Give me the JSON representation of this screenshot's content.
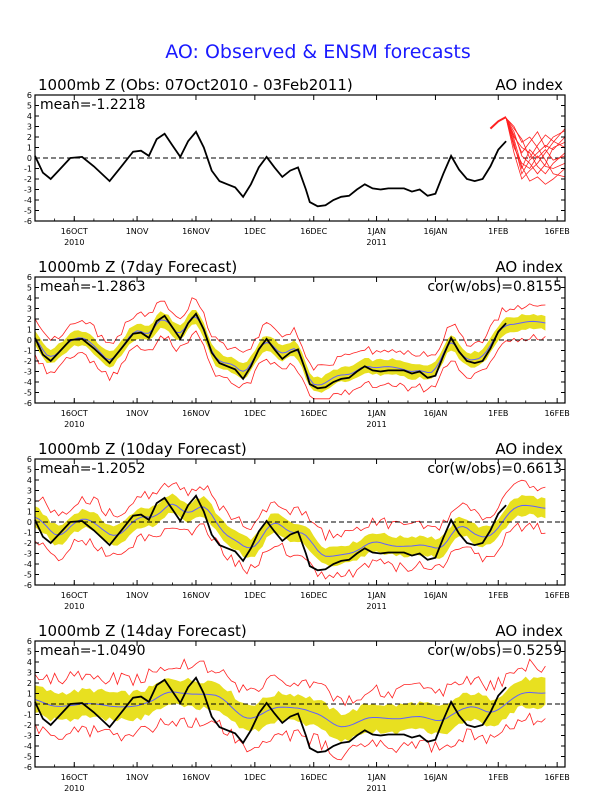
{
  "figure_title": "AO: Observed & ENSM forecasts",
  "colors": {
    "title": "#1a1aff",
    "observed": "#000000",
    "spread_fill": "#e8e020",
    "ensemble_mean": "#6060ff",
    "member": "#ff2020",
    "zero_line": "#000000"
  },
  "x_axis": {
    "tick_labels": [
      "16OCT",
      "1NOV",
      "16NOV",
      "1DEC",
      "16DEC",
      "1JAN",
      "16JAN",
      "1FEB",
      "16FEB"
    ],
    "tick_days": [
      10,
      26,
      41,
      56,
      71,
      87,
      102,
      118,
      133
    ],
    "year_labels": [
      {
        "text": "2010",
        "day": 10
      },
      {
        "text": "2011",
        "day": 87
      }
    ],
    "domain_days": [
      0,
      135
    ],
    "day_zero": "6 Oct 2010"
  },
  "y_axis": {
    "ylim": [
      -6,
      6
    ],
    "tick_labels": [
      "-6",
      "-5",
      "-4",
      "-3",
      "-2",
      "-1",
      "0",
      "1",
      "2",
      "3",
      "4",
      "5",
      "6"
    ]
  },
  "chart_data": [
    {
      "type": "line",
      "title": "1000mb Z (Obs: 07Oct2010 - 03Feb2011)",
      "index_label": "AO index",
      "mean_label": "mean=-1.2218",
      "cor_label": "",
      "lead_days": 0,
      "has_spread": false,
      "series": [
        {
          "name": "observed",
          "x": [
            0,
            2,
            4,
            6,
            9,
            12,
            15,
            19,
            22,
            25,
            27,
            29,
            31,
            33,
            35,
            37,
            39,
            41,
            43,
            45,
            47,
            49,
            51,
            53,
            55,
            57,
            59,
            61,
            63,
            65,
            67,
            69,
            70,
            72,
            74,
            76,
            78,
            80,
            82,
            84,
            86,
            88,
            90,
            92,
            94,
            96,
            98,
            100,
            102,
            104,
            106,
            108,
            110,
            112,
            114,
            116,
            118,
            120
          ],
          "values": [
            0.2,
            -1.4,
            -2.0,
            -1.2,
            0.0,
            0.1,
            -0.8,
            -2.2,
            -0.8,
            0.6,
            0.7,
            0.2,
            1.8,
            2.3,
            1.2,
            0.1,
            1.6,
            2.5,
            1.0,
            -1.2,
            -2.2,
            -2.5,
            -2.8,
            -3.7,
            -2.5,
            -0.9,
            0.1,
            -0.9,
            -1.8,
            -1.2,
            -0.9,
            -3.0,
            -4.2,
            -4.6,
            -4.5,
            -4.0,
            -3.7,
            -3.6,
            -3.0,
            -2.5,
            -2.9,
            -3.0,
            -2.9,
            -2.9,
            -2.9,
            -3.2,
            -3.0,
            -3.6,
            -3.4,
            -1.5,
            0.2,
            -1.1,
            -2.0,
            -2.2,
            -2.0,
            -0.8,
            0.8,
            1.6
          ]
        }
      ],
      "forecast_tail": {
        "name": "forecast_members",
        "start_day": 120,
        "x": [
          120,
          122,
          124,
          126,
          128,
          130,
          132,
          135
        ],
        "members": [
          [
            3.8,
            1.5,
            -1.5,
            -0.2,
            0.5,
            1.2,
            0.8,
            2.0
          ],
          [
            3.8,
            2.5,
            0.2,
            -0.5,
            -1.5,
            -0.6,
            1.0,
            1.5
          ],
          [
            3.8,
            1.0,
            -0.5,
            -1.0,
            0.2,
            -0.8,
            -1.0,
            -0.5
          ],
          [
            3.8,
            2.0,
            1.0,
            0.5,
            -0.8,
            -1.5,
            -0.5,
            0.5
          ],
          [
            3.8,
            0.5,
            -2.0,
            -1.2,
            -0.5,
            0.5,
            1.5,
            2.8
          ],
          [
            3.8,
            3.0,
            1.5,
            2.0,
            1.0,
            -0.2,
            -1.5,
            -1.8
          ],
          [
            3.8,
            1.8,
            -0.8,
            -2.2,
            -1.8,
            -2.5,
            -2.0,
            -1.0
          ],
          [
            3.8,
            2.2,
            0.5,
            1.5,
            2.5,
            1.0,
            2.0,
            2.6
          ],
          [
            3.8,
            1.2,
            -1.0,
            0.8,
            0.0,
            0.8,
            -0.2,
            0.2
          ],
          [
            3.8,
            2.8,
            1.8,
            0.0,
            1.2,
            2.2,
            1.6,
            1.0
          ]
        ]
      }
    },
    {
      "type": "line",
      "title": "1000mb Z (7day Forecast)",
      "index_label": "AO index",
      "mean_label": "mean=-1.2863",
      "cor_label": "cor(w/obs)=0.8155",
      "lead_days": 7,
      "has_spread": true,
      "spread_width": 0.7,
      "member_width": 1.6,
      "smooth": 1,
      "shift": 0,
      "damp": 0.95,
      "bias": 0.1
    },
    {
      "type": "line",
      "title": "1000mb Z (10day Forecast)",
      "index_label": "AO index",
      "mean_label": "mean=-1.2052",
      "cor_label": "cor(w/obs)=0.6613",
      "lead_days": 10,
      "has_spread": true,
      "spread_width": 0.9,
      "member_width": 2.0,
      "smooth": 2,
      "shift": 2,
      "damp": 0.8,
      "bias": 0.15
    },
    {
      "type": "line",
      "title": "1000mb Z (14day Forecast)",
      "index_label": "AO index",
      "mean_label": "mean=-1.0490",
      "cor_label": "cor(w/obs)=0.5259",
      "lead_days": 14,
      "has_spread": true,
      "spread_width": 1.3,
      "member_width": 2.6,
      "smooth": 4,
      "shift": 4,
      "damp": 0.55,
      "bias": 0.3
    }
  ]
}
